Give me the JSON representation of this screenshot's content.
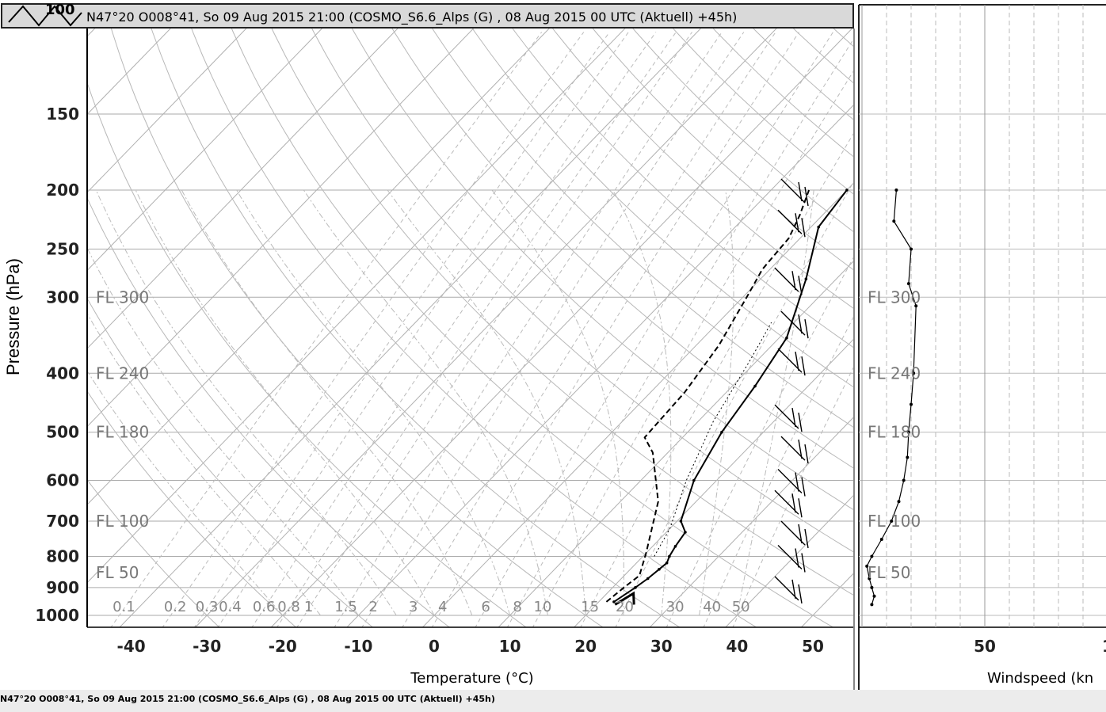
{
  "title": "N47°20 O008°41, So 09 Aug 2015 21:00 (COSMO_S6.6_Alps (G) , 08 Aug 2015 00 UTC (Aktuell) +45h)",
  "title_top_label": "100",
  "footer": "N47°20 O008°41, So 09 Aug 2015 21:00 (COSMO_S6.6_Alps (G) , 08 Aug 2015 00 UTC (Aktuell) +45h)",
  "chart_data": [
    {
      "type": "line",
      "subtype": "skew-T log-p sounding",
      "xlabel": "Temperature (°C)",
      "ylabel": "Pressure (hPa)",
      "x_ticks": [
        "-40",
        "-30",
        "-20",
        "-10",
        "0",
        "10",
        "20",
        "30",
        "40",
        "50"
      ],
      "y_ticks": [
        "150",
        "200",
        "250",
        "300",
        "400",
        "500",
        "600",
        "700",
        "800",
        "900",
        "1000"
      ],
      "flight_levels": [
        "FL 300",
        "FL 240",
        "FL 180",
        "FL 100",
        "FL 50"
      ],
      "mixing_ratio_labels": [
        "0.1",
        "0.2",
        "0.3",
        "0.4",
        "0.6",
        "0.8",
        "1",
        "1.5",
        "2",
        "3",
        "4",
        "6",
        "8",
        "10",
        "15",
        "20",
        "30",
        "40",
        "50"
      ],
      "ylim": [
        1000,
        100
      ],
      "log_y": true,
      "grid": true,
      "series": [
        {
          "style": "solid",
          "x": [
            22,
            23,
            23.5,
            23.8,
            24,
            23.5,
            23,
            22.5,
            20.5,
            17,
            14.5,
            13,
            11,
            6,
            1,
            0
          ],
          "y": [
            950,
            900,
            870,
            840,
            820,
            800,
            770,
            730,
            700,
            600,
            500,
            420,
            350,
            280,
            230,
            200
          ]
        },
        {
          "style": "dashed",
          "x": [
            21,
            21.5,
            22,
            20,
            15,
            8,
            5,
            4.5,
            3,
            0.5,
            -1,
            -1.5,
            -3,
            -5
          ],
          "y": [
            950,
            900,
            860,
            790,
            650,
            540,
            510,
            430,
            360,
            300,
            270,
            240,
            220,
            200
          ]
        },
        {
          "style": "dotted",
          "x": [
            21.5,
            20,
            16,
            12,
            9,
            7
          ],
          "y": [
            800,
            720,
            600,
            480,
            380,
            330
          ]
        },
        {
          "style": "thick",
          "x": [
            25,
            23.5,
            22.5
          ],
          "y": [
            960,
            920,
            960
          ]
        }
      ],
      "wind_barbs_pressures": [
        200,
        225,
        280,
        330,
        380,
        470,
        530,
        600,
        650,
        730,
        800,
        900
      ]
    },
    {
      "type": "line",
      "subtype": "wind speed profile",
      "xlabel": "Windspeed (kn",
      "x_ticks": [
        "50",
        "1"
      ],
      "flight_levels": [
        "FL 300",
        "FL 240",
        "FL 180",
        "FL 100",
        "FL 50"
      ],
      "series": [
        {
          "x": [
            14,
            13,
            20,
            19,
            22,
            21,
            20,
            19,
            18.5,
            17,
            15,
            12,
            8,
            4,
            2,
            3,
            4,
            5,
            4
          ],
          "y": [
            200,
            225,
            250,
            285,
            310,
            400,
            450,
            500,
            550,
            600,
            650,
            700,
            750,
            800,
            830,
            870,
            900,
            930,
            960
          ]
        }
      ]
    }
  ]
}
